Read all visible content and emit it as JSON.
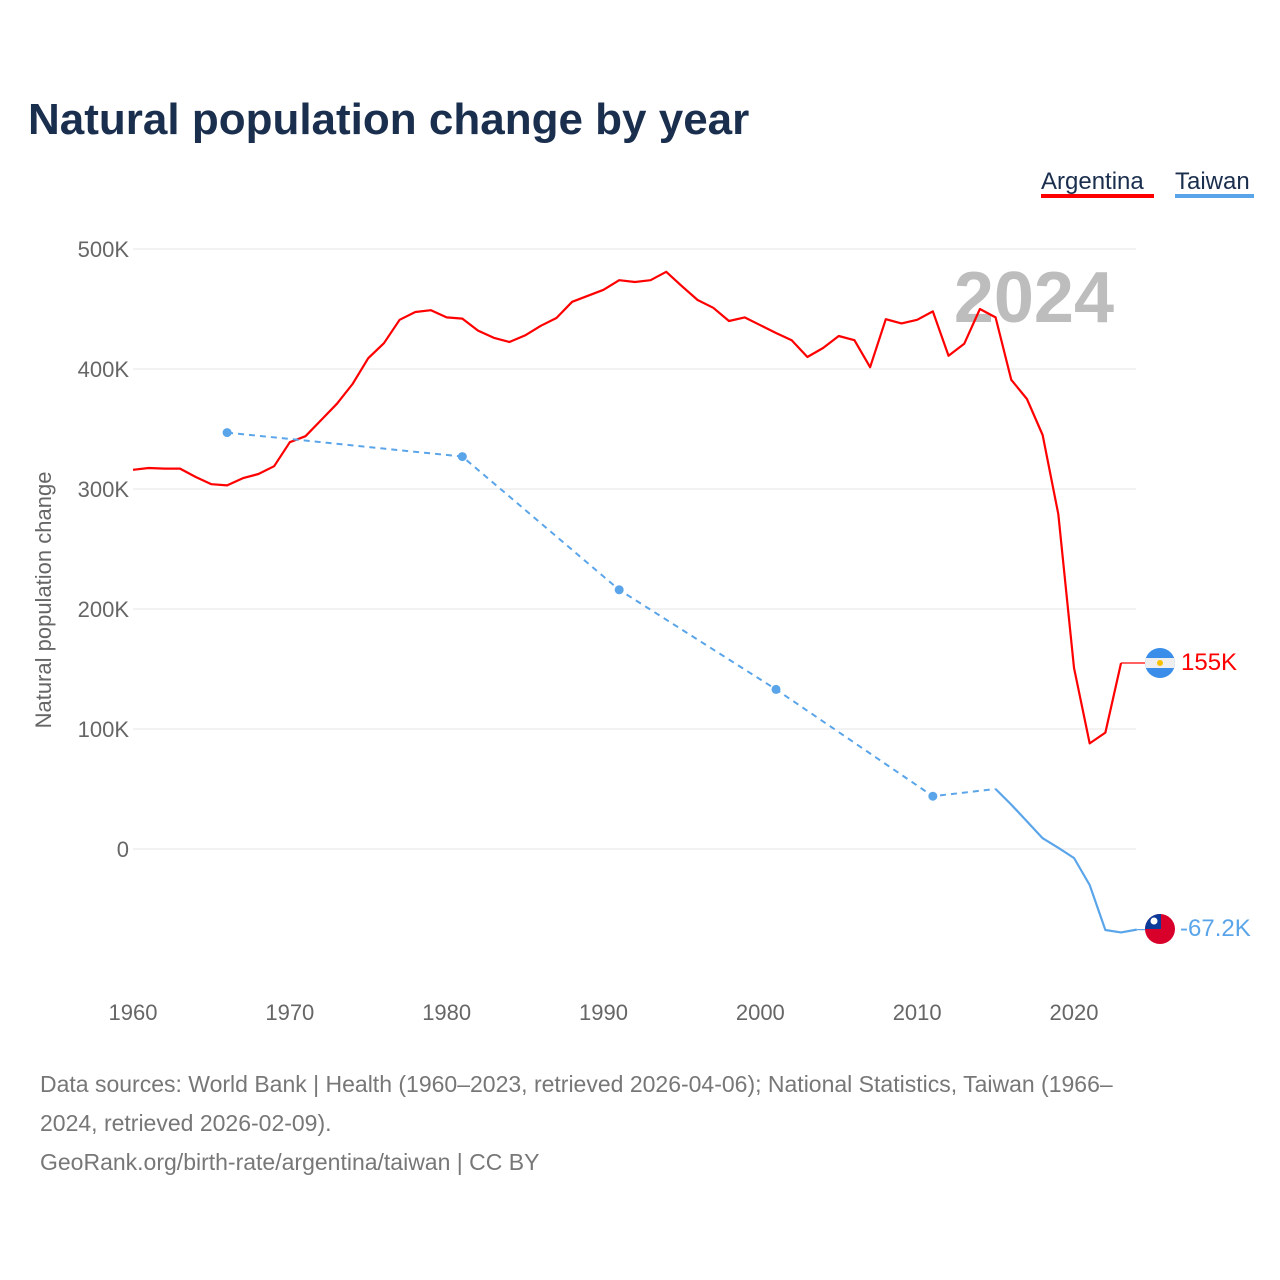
{
  "chart_data": {
    "type": "line",
    "title": "Natural population change by year",
    "ylabel": "Natural population change",
    "xlabel": "",
    "xlim": [
      1960,
      2024
    ],
    "ylim": [
      -100000,
      500000
    ],
    "x_ticks": [
      1960,
      1970,
      1980,
      1990,
      2000,
      2010,
      2020
    ],
    "y_ticks": [
      0,
      100000,
      200000,
      300000,
      400000,
      500000
    ],
    "y_tick_labels": [
      "0",
      "100K",
      "200K",
      "300K",
      "400K",
      "500K"
    ],
    "grid": true,
    "legend_placement": "top-right",
    "current_year_label": "2024",
    "series": [
      {
        "name": "Argentina",
        "color": "#ff0000",
        "end_label": "155K",
        "flag": "argentina-flag-icon",
        "x": [
          1960,
          1961,
          1962,
          1963,
          1964,
          1965,
          1966,
          1967,
          1968,
          1969,
          1970,
          1971,
          1972,
          1973,
          1974,
          1975,
          1976,
          1977,
          1978,
          1979,
          1980,
          1981,
          1982,
          1983,
          1984,
          1985,
          1986,
          1987,
          1988,
          1989,
          1990,
          1991,
          1992,
          1993,
          1994,
          1995,
          1996,
          1997,
          1998,
          1999,
          2000,
          2001,
          2002,
          2003,
          2004,
          2005,
          2006,
          2007,
          2008,
          2009,
          2010,
          2011,
          2012,
          2013,
          2014,
          2015,
          2016,
          2017,
          2018,
          2019,
          2020,
          2021,
          2022,
          2023
        ],
        "y": [
          316000,
          317500,
          317000,
          317000,
          310000,
          304000,
          303000,
          309000,
          312500,
          319000,
          339000,
          344000,
          357500,
          371000,
          387500,
          409000,
          421500,
          441000,
          447500,
          449000,
          443000,
          442000,
          432000,
          426000,
          422500,
          428000,
          436000,
          442500,
          456000,
          461000,
          466000,
          474000,
          472500,
          474000,
          481000,
          469000,
          457500,
          451000,
          440000,
          443000,
          436500,
          430000,
          424000,
          410000,
          417500,
          427500,
          424000,
          401500,
          441500,
          438000,
          441000,
          448000,
          411000,
          421000,
          450000,
          443000,
          391000,
          375000,
          345000,
          279000,
          151000,
          88000,
          97000,
          155000
        ]
      },
      {
        "name": "Taiwan",
        "color": "#5aa5ea",
        "end_label": "-67.2K",
        "flag": "taiwan-flag-icon",
        "x": [
          1966,
          1981,
          1991,
          2001,
          2011,
          2015,
          2016,
          2017,
          2018,
          2019,
          2020,
          2021,
          2022,
          2023,
          2024
        ],
        "y": [
          347000,
          327000,
          216000,
          133000,
          44000,
          50000,
          37000,
          23000,
          9000,
          1000,
          -7500,
          -30000,
          -67500,
          -69500,
          -67200
        ],
        "sparse_until": 2015
      }
    ]
  },
  "footer": {
    "line1": "Data sources: World Bank | Health (1960–2023, retrieved 2026-04-06); National Statistics, Taiwan (1966–",
    "line2": "2024, retrieved 2026-02-09).",
    "line3": "GeoRank.org/birth-rate/argentina/taiwan | CC BY"
  }
}
